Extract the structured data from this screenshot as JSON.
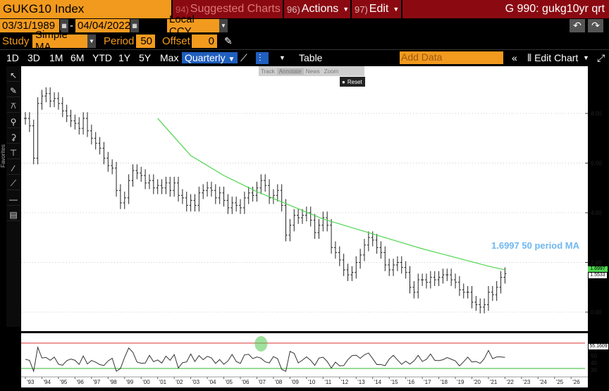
{
  "header": {
    "title": "GUKG10 Index",
    "suggested_num": "94)",
    "suggested": "Suggested Charts",
    "actions_num": "96)",
    "actions": "Actions",
    "edit_num": "97)",
    "edit": "Edit",
    "chart_id": "G 990: gukg10yr qrt"
  },
  "range": {
    "start": "03/31/1989",
    "end": "04/04/2022",
    "currency": "Local CCY",
    "study_label": "Study",
    "study": "Simple MA",
    "period_label": "Period",
    "period": "50",
    "offset_label": "Offset",
    "offset": "0"
  },
  "toolbar": {
    "ranges": [
      "1D",
      "3D",
      "1M",
      "6M",
      "YTD",
      "1Y",
      "5Y",
      "Max"
    ],
    "frequency": "Quarterly",
    "table": "Table",
    "add_data_placeholder": "Add Data",
    "edit_chart": "Edit Chart"
  },
  "mini_toolbar": {
    "track": "Track",
    "annotate": "Annotate",
    "news": "News",
    "zoom": "Zoom",
    "reset": "Reset"
  },
  "left_tools": [
    "pointer-icon",
    "pencil-icon",
    "study-icon",
    "bar-icon",
    "candle-icon",
    "range-icon",
    "line-tool-icon",
    "trend-icon",
    "horizontal-line-icon",
    "channel-icon"
  ],
  "favorites_label": "Favorites",
  "annotation": "1.6997 50 period MA",
  "last_price": "1.5533",
  "last_ma": "1.6997",
  "rsi_last": "55.1609",
  "colors": {
    "accent": "#f29a1e",
    "header_bg": "#8b0a12",
    "ma_line": "#4fd64f",
    "annotation": "#6fb8f0",
    "rsi_upper": "#d93030",
    "rsi_lower": "#2fb82f"
  },
  "chart_data": {
    "type": "line",
    "y_ticks": [
      "8.00",
      "6.00",
      "4.00",
      "2.00",
      "0.00"
    ],
    "rsi_ticks": [
      "60",
      "50",
      "40",
      "30"
    ],
    "x_labels": [
      "'93",
      "'94",
      "'95",
      "'96",
      "'97",
      "'98",
      "'99",
      "'00",
      "'01",
      "'02",
      "'03",
      "'04",
      "'05",
      "'06",
      "'07",
      "'08",
      "'09",
      "'10",
      "'11",
      "'12",
      "'13",
      "'14",
      "'15",
      "'16",
      "'17",
      "'18",
      "'19",
      "'20",
      "'21",
      "'22",
      "'23",
      "'24",
      "'25",
      "'26"
    ],
    "series": [
      {
        "x": [
          1993.0,
          1993.25,
          1993.5,
          1993.75,
          1994.0,
          1994.25,
          1994.5,
          1994.75,
          1995.0,
          1995.25,
          1995.5,
          1995.75,
          1996.0,
          1996.25,
          1996.5,
          1996.75,
          1997.0,
          1997.25,
          1997.5,
          1997.75,
          1998.0,
          1998.25,
          1998.5,
          1998.75,
          1999.0,
          1999.25,
          1999.5,
          1999.75,
          2000.0,
          2000.25,
          2000.5,
          2000.75,
          2001.0,
          2001.25,
          2001.5,
          2001.75,
          2002.0,
          2002.25,
          2002.5,
          2002.75,
          2003.0,
          2003.25,
          2003.5,
          2003.75,
          2004.0,
          2004.25,
          2004.5,
          2004.75,
          2005.0,
          2005.25,
          2005.5,
          2005.75,
          2006.0,
          2006.25,
          2006.5,
          2006.75,
          2007.0,
          2007.25,
          2007.5,
          2007.75,
          2008.0,
          2008.25,
          2008.5,
          2008.75,
          2009.0,
          2009.25,
          2009.5,
          2009.75,
          2010.0,
          2010.25,
          2010.5,
          2010.75,
          2011.0,
          2011.25,
          2011.5,
          2011.75,
          2012.0,
          2012.25,
          2012.5,
          2012.75,
          2013.0,
          2013.25,
          2013.5,
          2013.75,
          2014.0,
          2014.25,
          2014.5,
          2014.75,
          2015.0,
          2015.25,
          2015.5,
          2015.75,
          2016.0,
          2016.25,
          2016.5,
          2016.75,
          2017.0,
          2017.25,
          2017.5,
          2017.75,
          2018.0,
          2018.25,
          2018.5,
          2018.75,
          2019.0,
          2019.25,
          2019.5,
          2019.75,
          2020.0,
          2020.25,
          2020.5,
          2020.75,
          2021.0,
          2021.25,
          2021.5,
          2021.75,
          2022.0
        ],
        "close": [
          7.8,
          7.5,
          6.2,
          8.4,
          8.7,
          8.8,
          8.5,
          8.6,
          8.4,
          8.1,
          7.9,
          7.7,
          7.6,
          7.4,
          7.8,
          7.3,
          7.0,
          6.8,
          6.6,
          6.2,
          5.9,
          5.8,
          4.9,
          4.4,
          4.6,
          5.3,
          5.7,
          5.6,
          5.5,
          5.2,
          5.3,
          5.0,
          5.1,
          5.0,
          5.2,
          4.9,
          5.2,
          4.7,
          4.6,
          4.3,
          4.5,
          4.3,
          4.8,
          4.9,
          5.0,
          4.9,
          4.6,
          4.8,
          4.5,
          4.2,
          4.4,
          4.3,
          4.2,
          4.6,
          4.8,
          4.7,
          5.0,
          5.3,
          5.1,
          4.6,
          4.7,
          4.9,
          4.3,
          3.1,
          3.5,
          3.9,
          3.8,
          3.9,
          4.0,
          3.7,
          3.2,
          3.5,
          3.8,
          3.5,
          2.6,
          2.4,
          2.1,
          1.7,
          1.5,
          1.6,
          2.0,
          2.3,
          2.7,
          3.0,
          2.9,
          2.6,
          2.4,
          1.9,
          1.7,
          1.9,
          2.0,
          1.8,
          1.6,
          1.0,
          0.8,
          1.3,
          1.3,
          1.2,
          1.4,
          1.3,
          1.4,
          1.5,
          1.5,
          1.3,
          1.2,
          0.9,
          0.8,
          0.8,
          0.4,
          0.3,
          0.2,
          0.3,
          0.8,
          0.7,
          1.0,
          1.4,
          1.55
        ],
        "name": ""
      },
      {
        "name": "50 period MA",
        "x": [
          2001.0,
          2003.0,
          2005.0,
          2007.0,
          2009.0,
          2011.0,
          2013.0,
          2015.0,
          2017.0,
          2019.0,
          2021.0,
          2022.0
        ],
        "values": [
          7.8,
          6.3,
          5.5,
          4.85,
          4.3,
          3.75,
          3.35,
          2.95,
          2.55,
          2.2,
          1.85,
          1.6997
        ]
      }
    ]
  }
}
